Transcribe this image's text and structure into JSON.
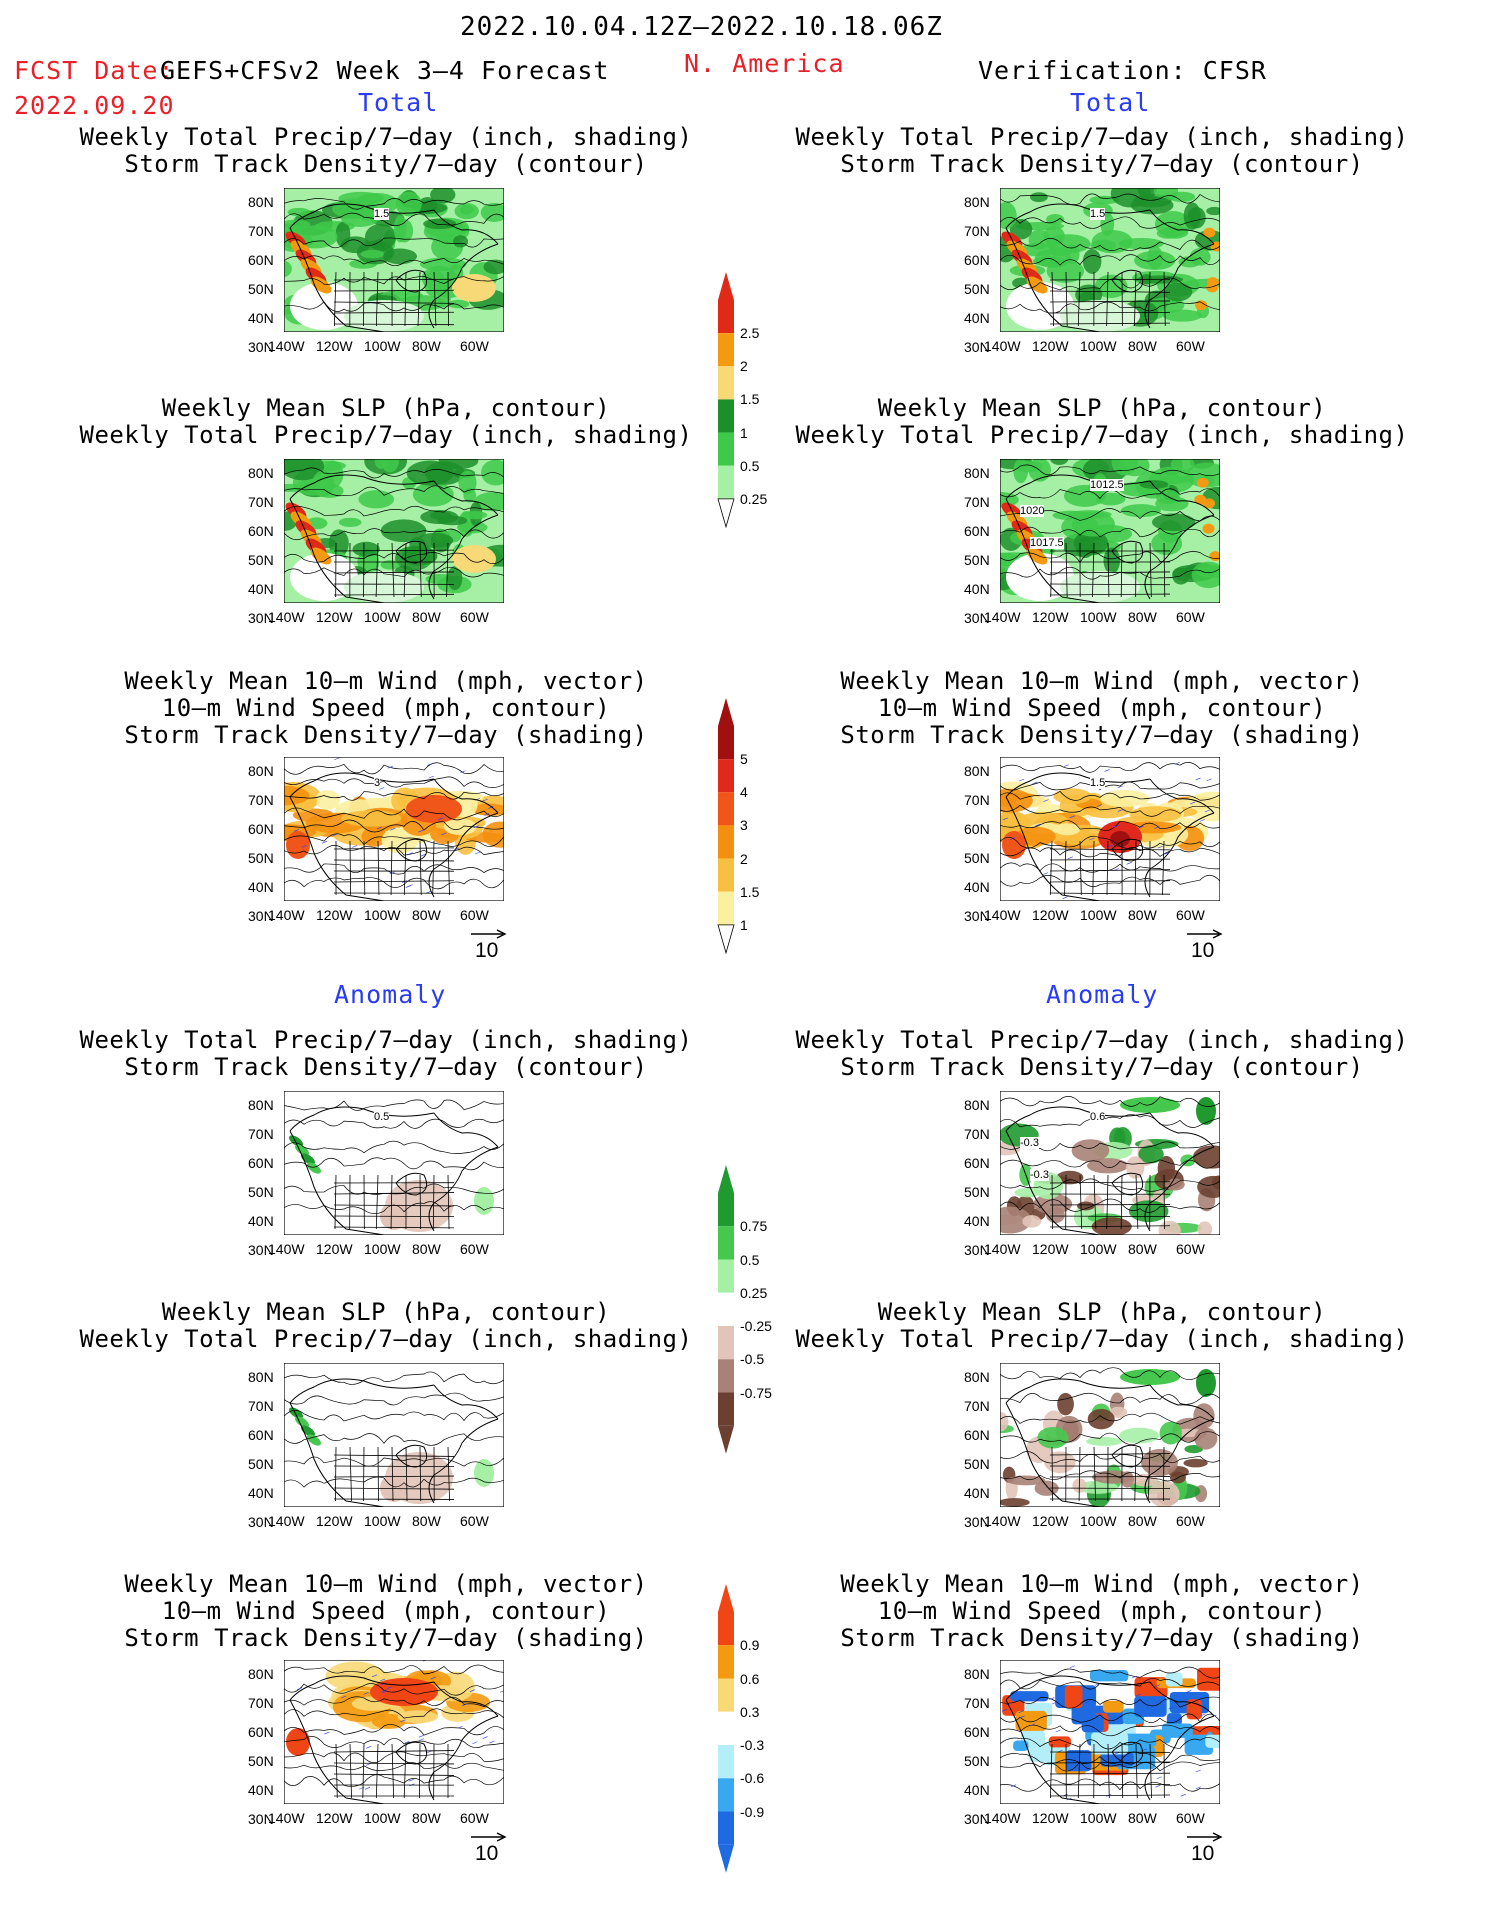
{
  "header": {
    "period": "2022.10.04.12Z–2022.10.18.06Z",
    "fcst_label": "FCST Date:",
    "model": "GEFS+CFSv2 Week 3–4 Forecast",
    "region": "N. America",
    "verification": "Verification: CFSR",
    "fcst_date": "2022.09.20"
  },
  "sections": {
    "total": "Total",
    "anomaly": "Anomaly"
  },
  "panel_titles": {
    "precip_storm": [
      "Weekly Total Precip/7–day (inch, shading)",
      "Storm Track Density/7–day (contour)"
    ],
    "slp_precip": [
      "Weekly Mean SLP (hPa, contour)",
      "Weekly Total Precip/7–day (inch, shading)"
    ],
    "wind_storm": [
      "Weekly Mean 10–m Wind (mph, vector)",
      "10–m Wind Speed (mph, contour)",
      "Storm Track Density/7–day (shading)"
    ]
  },
  "axes": {
    "lat_labels": [
      "80N",
      "70N",
      "60N",
      "50N",
      "40N",
      "30N"
    ],
    "lon_labels": [
      "140W",
      "120W",
      "100W",
      "80W",
      "60W"
    ]
  },
  "vector_reference": "10",
  "map_annotations": {
    "fc_precip_total": [
      "1.5"
    ],
    "ob_precip_total": [
      "1.5"
    ],
    "ob_slp_total": [
      "1012.5",
      "1020",
      "1017.5"
    ],
    "fc_wind_total": [
      "3"
    ],
    "ob_wind_total": [
      "1.5"
    ],
    "fc_precip_anom": [
      "0.5"
    ],
    "ob_precip_anom": [
      "0.6",
      "-0.3",
      "-0.3"
    ]
  },
  "colorbars": {
    "precip_total": {
      "labels": [
        "2.5",
        "2",
        "1.5",
        "1",
        "0.5",
        "0.25"
      ],
      "colors": [
        "#e02a18",
        "#f39a12",
        "#f7d978",
        "#1d8f2a",
        "#3ec94a",
        "#a6f0a6"
      ]
    },
    "storm_total": {
      "labels": [
        "5",
        "4",
        "3",
        "2",
        "1.5",
        "1"
      ],
      "colors": [
        "#a01010",
        "#e0281c",
        "#f0561a",
        "#f4900f",
        "#f8c040",
        "#fbefa0"
      ]
    },
    "precip_anom": {
      "labels": [
        "0.75",
        "0.5",
        "0.25",
        "-0.25",
        "-0.5",
        "-0.75"
      ],
      "colors": [
        "#1f9a2e",
        "#46c84e",
        "#a6f0a6",
        "#ffffff",
        "#e2c4b8",
        "#a88276",
        "#6b4030"
      ]
    },
    "storm_anom": {
      "labels": [
        "0.9",
        "0.6",
        "0.3",
        "-0.3",
        "-0.6",
        "-0.9"
      ],
      "colors": [
        "#f04515",
        "#f39a12",
        "#f7d978",
        "#ffffff",
        "#b4eef8",
        "#38a8f0",
        "#1f6ae0"
      ]
    }
  }
}
